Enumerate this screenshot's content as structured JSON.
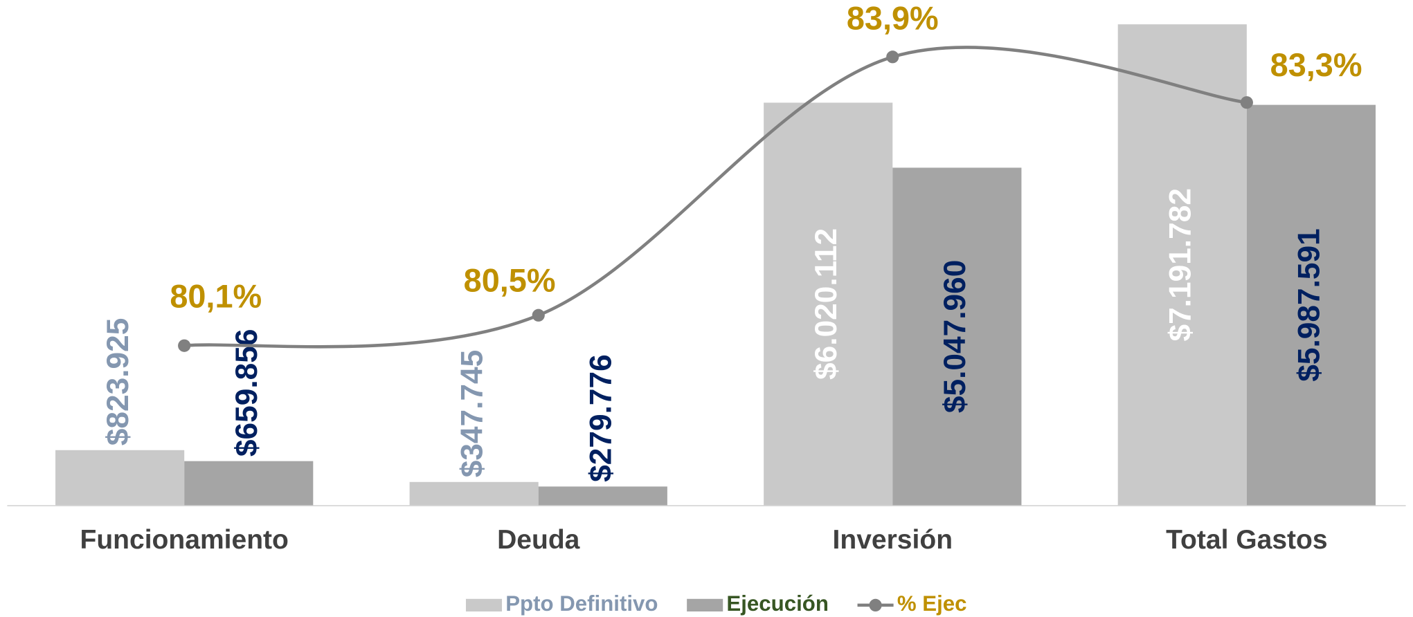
{
  "chart_data": {
    "type": "bar",
    "categories": [
      "Funcionamiento",
      "Deuda",
      "Inversión",
      "Total Gastos"
    ],
    "series": [
      {
        "name": "Ppto Definitivo",
        "color": "#c9c9c9",
        "legend_text_color": "#8497b0",
        "values": [
          823925,
          347745,
          6020112,
          7191782
        ],
        "value_labels": [
          "$823.925",
          "$347.745",
          "$6.020.112",
          "$7.191.782"
        ],
        "label_colors": [
          "#8497b0",
          "#8497b0",
          "#ffffff",
          "#ffffff"
        ]
      },
      {
        "name": "Ejecución",
        "color": "#a5a5a5",
        "legend_text_color": "#375623",
        "values": [
          659856,
          279776,
          5047960,
          5987591
        ],
        "value_labels": [
          "$659.856",
          "$279.776",
          "$5.047.960",
          "$5.987.591"
        ],
        "label_colors": [
          "#002060",
          "#002060",
          "#002060",
          "#002060"
        ]
      },
      {
        "name": "% Ejec",
        "type": "line",
        "axis": "y2",
        "color": "#808080",
        "legend_text_color": "#bf9000",
        "values": [
          80.1,
          80.5,
          83.9,
          83.3
        ],
        "value_labels": [
          "80,1%",
          "80,5%",
          "83,9%",
          "83,3%"
        ],
        "label_colors": [
          "#bf9000",
          "#bf9000",
          "#bf9000",
          "#bf9000"
        ]
      }
    ],
    "ylim": [
      0,
      7500000
    ],
    "y2lim": [
      78,
      84.6
    ],
    "legend": "bottom"
  }
}
